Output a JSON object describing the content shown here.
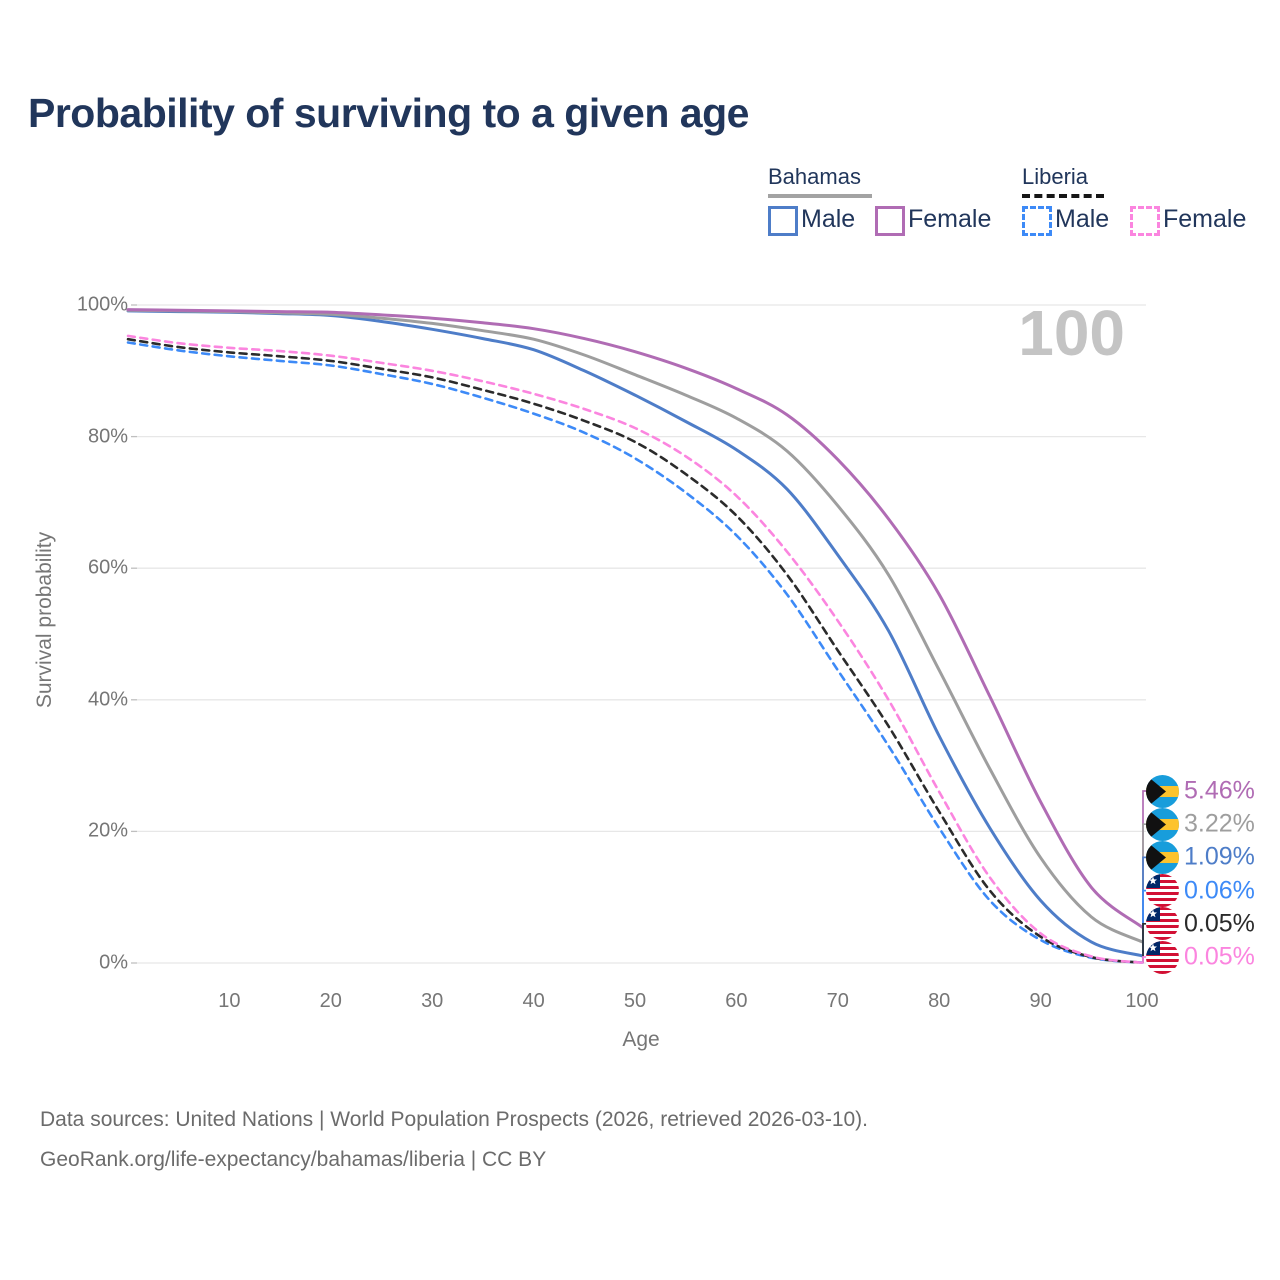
{
  "title": "Probability of surviving to a given age",
  "watermark": "100",
  "legend": {
    "groups": [
      {
        "label": "Bahamas",
        "line_style": "solid",
        "underline_color": "#a3a3a3",
        "items": [
          {
            "label": "Male",
            "color": "#4e7dc8"
          },
          {
            "label": "Female",
            "color": "#b06cb4"
          }
        ]
      },
      {
        "label": "Liberia",
        "line_style": "dashed",
        "underline_color": "#161616",
        "items": [
          {
            "label": "Male",
            "color": "#3d8af7"
          },
          {
            "label": "Female",
            "color": "#fb85df"
          }
        ]
      }
    ]
  },
  "chart_data": {
    "type": "line",
    "xlabel": "Age",
    "ylabel": "Survival probability",
    "xlim": [
      0,
      100
    ],
    "ylim": [
      0,
      100
    ],
    "grid": "horizontal",
    "hover_age_indicator": "100",
    "x_ticks": [
      {
        "v": 10,
        "label": "10"
      },
      {
        "v": 20,
        "label": "20"
      },
      {
        "v": 30,
        "label": "30"
      },
      {
        "v": 40,
        "label": "40"
      },
      {
        "v": 50,
        "label": "50"
      },
      {
        "v": 60,
        "label": "60"
      },
      {
        "v": 70,
        "label": "70"
      },
      {
        "v": 80,
        "label": "80"
      },
      {
        "v": 90,
        "label": "90"
      },
      {
        "v": 100,
        "label": "100"
      }
    ],
    "y_ticks": [
      {
        "v": 0,
        "label": "0%"
      },
      {
        "v": 20,
        "label": "20%"
      },
      {
        "v": 40,
        "label": "40%"
      },
      {
        "v": 60,
        "label": "60%"
      },
      {
        "v": 80,
        "label": "80%"
      },
      {
        "v": 100,
        "label": "100%"
      }
    ],
    "x": [
      0,
      5,
      10,
      15,
      20,
      25,
      30,
      35,
      40,
      45,
      50,
      55,
      60,
      65,
      70,
      75,
      80,
      85,
      90,
      95,
      100
    ],
    "series": [
      {
        "name": "Bahamas Female",
        "country": "Bahamas",
        "flag": "bahamas",
        "color": "#b06cb4",
        "dash": "solid",
        "end_label": "5.46%",
        "values": [
          99.3,
          99.2,
          99.1,
          99.0,
          98.9,
          98.5,
          98.0,
          97.3,
          96.4,
          94.9,
          92.9,
          90.4,
          87.3,
          83.3,
          76.5,
          67.5,
          56.0,
          40.5,
          24.5,
          11.5,
          5.46
        ]
      },
      {
        "name": "Bahamas (both sexes)",
        "country": "Bahamas",
        "flag": "bahamas",
        "color": "#9e9e9e",
        "dash": "solid",
        "end_label": "3.22%",
        "values": [
          99.2,
          99.1,
          99.0,
          98.8,
          98.6,
          98.0,
          97.2,
          96.1,
          94.8,
          92.4,
          89.4,
          86.3,
          82.8,
          77.8,
          69.5,
          59.0,
          44.5,
          29.5,
          16.0,
          7.0,
          3.22
        ]
      },
      {
        "name": "Bahamas Male",
        "country": "Bahamas",
        "flag": "bahamas",
        "color": "#4e7dc8",
        "dash": "solid",
        "end_label": "1.09%",
        "values": [
          99.1,
          99.0,
          98.9,
          98.7,
          98.4,
          97.5,
          96.3,
          94.9,
          93.2,
          90.0,
          86.3,
          82.3,
          78.0,
          72.0,
          62.0,
          50.5,
          34.5,
          20.5,
          9.5,
          3.2,
          1.09
        ]
      },
      {
        "name": "Liberia Male",
        "country": "Liberia",
        "flag": "liberia",
        "color": "#3d8af7",
        "dash": "dashed",
        "end_label": "0.06%",
        "values": [
          94.3,
          93.1,
          92.2,
          91.5,
          90.8,
          89.5,
          88.0,
          85.9,
          83.5,
          80.6,
          76.7,
          71.5,
          65.0,
          56.0,
          44.5,
          33.0,
          20.5,
          9.5,
          3.5,
          0.8,
          0.06
        ]
      },
      {
        "name": "Liberia (both sexes)",
        "country": "Liberia",
        "flag": "liberia",
        "color": "#2b2b2b",
        "dash": "dashed",
        "end_label": "0.05%",
        "values": [
          94.8,
          93.6,
          92.8,
          92.2,
          91.5,
          90.3,
          89.0,
          87.1,
          85.0,
          82.4,
          79.2,
          74.3,
          68.0,
          59.0,
          47.5,
          36.0,
          23.0,
          11.0,
          4.0,
          0.9,
          0.05
        ]
      },
      {
        "name": "Liberia Female",
        "country": "Liberia",
        "flag": "liberia",
        "color": "#fb85df",
        "dash": "dashed",
        "end_label": "0.05%",
        "values": [
          95.3,
          94.2,
          93.5,
          93.0,
          92.3,
          91.2,
          90.0,
          88.4,
          86.5,
          84.2,
          81.3,
          77.0,
          71.0,
          62.5,
          52.0,
          40.0,
          26.0,
          13.0,
          4.5,
          1.0,
          0.05
        ]
      }
    ],
    "flag_colors": {
      "bahamas": {
        "aqua": "#189ddb",
        "gold": "#fdc32d",
        "black": "#111111"
      },
      "liberia": {
        "red": "#d21034",
        "white": "#ffffff",
        "blue": "#002868"
      }
    }
  },
  "footer": {
    "line1": "Data sources: United Nations | World Population Prospects (2026, retrieved 2026-03-10).",
    "line2": "GeoRank.org/life-expectancy/bahamas/liberia | CC BY"
  }
}
